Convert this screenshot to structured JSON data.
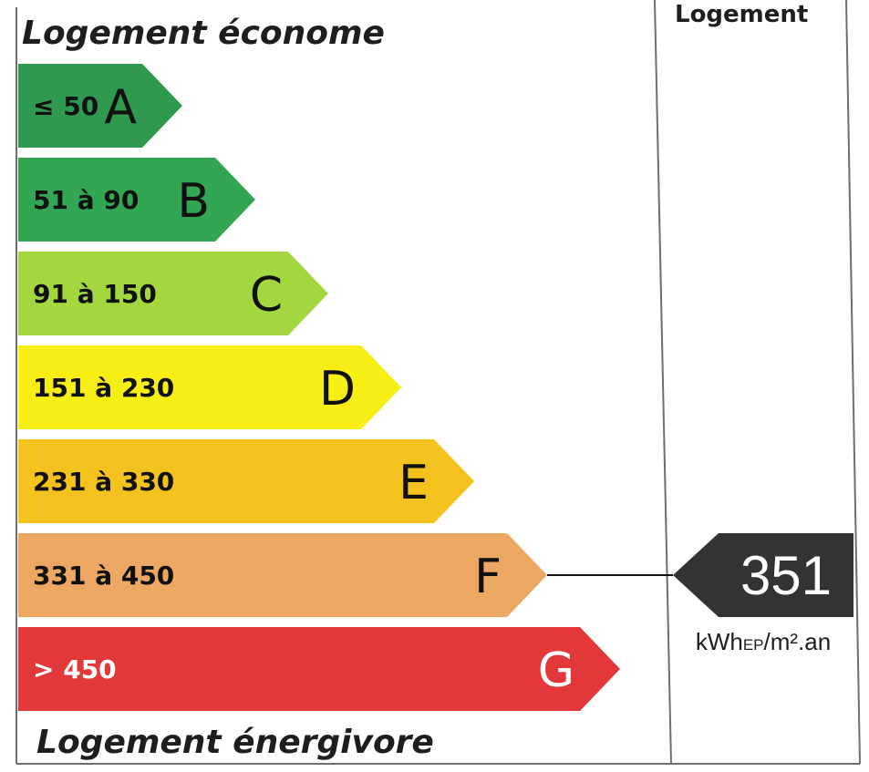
{
  "chart_data": {
    "type": "bar",
    "header_top": "Logement économe",
    "header_bottom": "Logement énergivore",
    "column_title": "Logement",
    "classes": [
      {
        "letter": "A",
        "range": "≤ 50",
        "fill": "#2f9a4f",
        "text_color": "#111111",
        "letter_color": "#111111"
      },
      {
        "letter": "B",
        "range": "51 à 90",
        "fill": "#33a653",
        "text_color": "#111111",
        "letter_color": "#111111"
      },
      {
        "letter": "C",
        "range": "91 à 150",
        "fill": "#a4d640",
        "text_color": "#111111",
        "letter_color": "#111111"
      },
      {
        "letter": "D",
        "range": "151 à 230",
        "fill": "#f6ee14",
        "text_color": "#111111",
        "letter_color": "#111111"
      },
      {
        "letter": "E",
        "range": "231 à 330",
        "fill": "#f3c21e",
        "text_color": "#111111",
        "letter_color": "#111111"
      },
      {
        "letter": "F",
        "range": "331 à 450",
        "fill": "#eca763",
        "text_color": "#111111",
        "letter_color": "#111111"
      },
      {
        "letter": "G",
        "range": "> 450",
        "fill": "#e3383a",
        "text_color": "#ffffff",
        "letter_color": "#ffffff"
      }
    ],
    "value": 351,
    "value_class": "F",
    "unit_main": "kWh",
    "unit_sub": "EP",
    "unit_rest": "/m².an",
    "marker_color": "#333333"
  }
}
